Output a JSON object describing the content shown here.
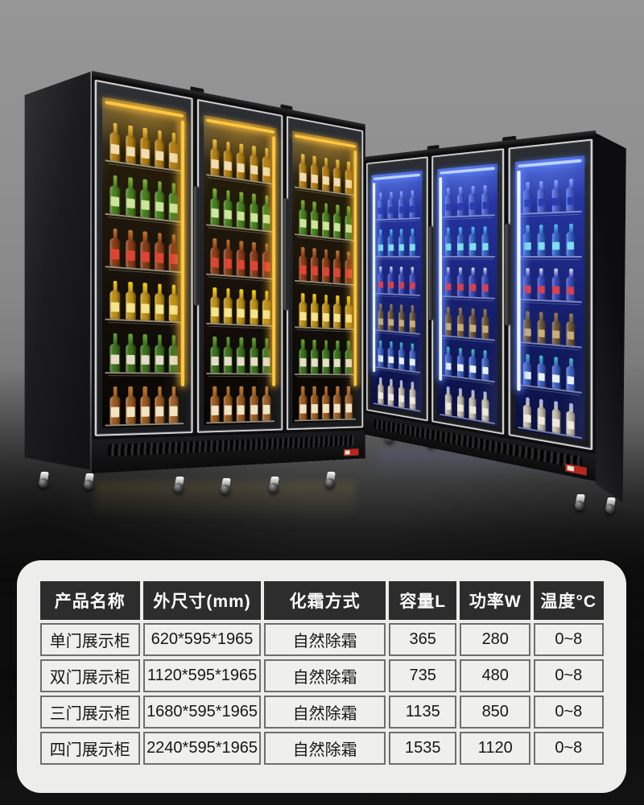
{
  "spec_table": {
    "headers": [
      "产品名称",
      "外尺寸(mm)",
      "化霜方式",
      "容量L",
      "功率W",
      "温度°C"
    ],
    "rows": [
      {
        "name": "单门展示柜",
        "size": "620*595*1965",
        "defrost": "自然除霜",
        "capacity": "365",
        "power": "280",
        "temp": "0~8"
      },
      {
        "name": "双门展示柜",
        "size": "1120*595*1965",
        "defrost": "自然除霜",
        "capacity": "735",
        "power": "480",
        "temp": "0~8"
      },
      {
        "name": "三门展示柜",
        "size": "1680*595*1965",
        "defrost": "自然除霜",
        "capacity": "1135",
        "power": "850",
        "temp": "0~8"
      },
      {
        "name": "四门展示柜",
        "size": "2240*595*1965",
        "defrost": "自然除霜",
        "capacity": "1535",
        "power": "1120",
        "temp": "0~8"
      }
    ]
  },
  "colors": {
    "header_bg": "#2d2d2d",
    "header_text": "#ffffff",
    "card_bg": "#ededec",
    "cell_border": "#6e6e6e",
    "cell_text": "#161616",
    "warm_led": "#ffc83d",
    "cool_led": "#bcd4ff",
    "badge_red": "#b5271f"
  },
  "fridges": {
    "warm": {
      "doors": 3,
      "bottles_per_shelf": 5,
      "led": "#ffc83d",
      "led_glow": "rgba(255,190,60,0.85)",
      "interior": [
        "#2c2209",
        "#17110a",
        "#070503"
      ],
      "glow_top": "rgba(255,200,90,0.55)",
      "glow_side": "rgba(255,190,60,0.30)",
      "wire": "rgba(255,244,210,0.55)",
      "shelves": [
        {
          "body": "#b07c12",
          "cap": "#ecc544",
          "label": "#f0dcae"
        },
        {
          "body": "#49801e",
          "cap": "#8ab43c",
          "label": "#cde49c"
        },
        {
          "body": "#8a3c16",
          "cap": "#c27a30",
          "label": "#de4434"
        },
        {
          "body": "#bd9016",
          "cap": "#f7d414",
          "label": "#f4e48e"
        },
        {
          "body": "#3c721c",
          "cap": "#6da436",
          "label": "#e3ddc9"
        },
        {
          "body": "#9a5a20",
          "cap": "#c07830",
          "label": "#efe3c2"
        }
      ]
    },
    "cool": {
      "doors": 3,
      "bottles_per_shelf": 4,
      "led": "#bcd4ff",
      "led_glow": "rgba(90,130,255,0.9)",
      "interior": [
        "#2b3cb4",
        "#16206e",
        "#0a1040"
      ],
      "glow_top": "rgba(120,160,255,0.55)",
      "glow_side": "rgba(150,190,255,0.30)",
      "wire": "rgba(205,220,255,0.55)",
      "shelves": [
        {
          "body": "#4a63d8",
          "cap": "#93a8f8",
          "label": "#2b3db0"
        },
        {
          "body": "#3566cf",
          "cap": "#57c8e8",
          "label": "#7fdef2"
        },
        {
          "body": "#3a4cc0",
          "cap": "#e4e6f4",
          "label": "#d84050"
        },
        {
          "body": "#705a3a",
          "cap": "#9a7f50",
          "label": "#c8ae78"
        },
        {
          "body": "#3f63c8",
          "cap": "#40c8b8",
          "label": "#e8f0f8"
        },
        {
          "body": "#c4bcae",
          "cap": "#9fb0f0",
          "label": "#efe8da"
        }
      ]
    }
  }
}
